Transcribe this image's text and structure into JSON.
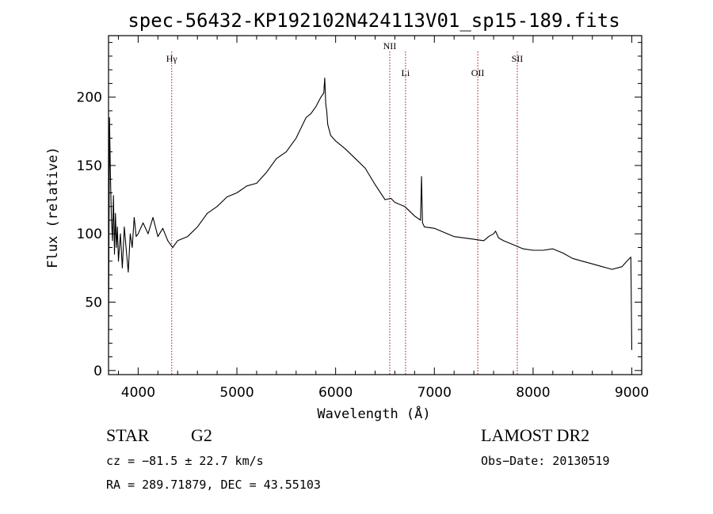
{
  "chart_data": {
    "type": "line",
    "title": "spec-56432-KP192102N424113V01_sp15-189.fits",
    "xlabel": "Wavelength (Å)",
    "ylabel": "Flux (relative)",
    "xlim": [
      3700,
      9100
    ],
    "ylim": [
      -3,
      245
    ],
    "xticks": [
      4000,
      5000,
      6000,
      7000,
      8000,
      9000
    ],
    "yticks": [
      0,
      50,
      100,
      150,
      200
    ],
    "grid": false,
    "series": [
      {
        "x": [
          3700,
          3710,
          3720,
          3730,
          3740,
          3750,
          3760,
          3770,
          3780,
          3790,
          3800,
          3820,
          3840,
          3860,
          3880,
          3900,
          3920,
          3940,
          3960,
          3980,
          4000,
          4050,
          4100,
          4150,
          4200,
          4250,
          4300,
          4350,
          4400,
          4500,
          4600,
          4700,
          4800,
          4900,
          5000,
          5100,
          5200,
          5300,
          5400,
          5500,
          5600,
          5700,
          5750,
          5800,
          5850,
          5880,
          5890,
          5900,
          5910,
          5920,
          5950,
          6000,
          6100,
          6200,
          6300,
          6400,
          6500,
          6560,
          6600,
          6700,
          6800,
          6860,
          6870,
          6880,
          6900,
          7000,
          7100,
          7200,
          7300,
          7400,
          7500,
          7550,
          7600,
          7620,
          7650,
          7700,
          7800,
          7900,
          8000,
          8100,
          8200,
          8300,
          8400,
          8500,
          8600,
          8700,
          8800,
          8900,
          8950,
          8990,
          9000
        ],
        "y": [
          20,
          185,
          140,
          110,
          95,
          128,
          85,
          115,
          90,
          105,
          80,
          100,
          75,
          105,
          88,
          72,
          100,
          90,
          112,
          98,
          100,
          108,
          100,
          112,
          98,
          104,
          95,
          90,
          95,
          98,
          105,
          115,
          120,
          127,
          130,
          135,
          137,
          145,
          155,
          160,
          170,
          185,
          188,
          193,
          200,
          203,
          214,
          195,
          190,
          180,
          172,
          168,
          162,
          155,
          148,
          136,
          125,
          126,
          123,
          120,
          113,
          110,
          142,
          108,
          105,
          104,
          101,
          98,
          97,
          96,
          95,
          98,
          100,
          102,
          97,
          95,
          92,
          89,
          88,
          88,
          89,
          86,
          82,
          80,
          78,
          76,
          74,
          76,
          80,
          83,
          15
        ]
      }
    ],
    "line_markers": [
      {
        "label": "Hγ",
        "x": 4340
      },
      {
        "label": "NII",
        "x": 6548
      },
      {
        "label": "Li",
        "x": 6708
      },
      {
        "label": "OII",
        "x": 7440
      },
      {
        "label": "SII",
        "x": 7840
      }
    ]
  },
  "info": {
    "object_class": "STAR",
    "subclass": "G2",
    "survey": "LAMOST DR2",
    "cz": "cz = −81.5 ± 22.7 km/s",
    "obs_date": "Obs−Date: 20130519",
    "coords": "RA = 289.71879, DEC =  43.55103"
  },
  "colors": {
    "axis": "#000000",
    "spectrum": "#000000",
    "marker_line": "#a01010"
  }
}
